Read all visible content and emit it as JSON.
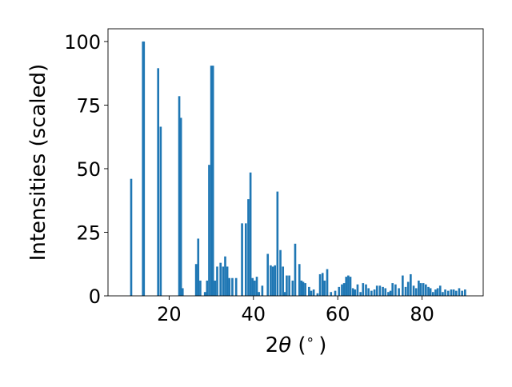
{
  "chart_data": {
    "type": "bar",
    "title": "",
    "xlabel_prefix": "2",
    "xlabel_theta": "θ",
    "xlabel_suffix": " (",
    "xlabel_degree": "∘",
    "xlabel_close": ")",
    "ylabel": "Intensities (scaled)",
    "xlim": [
      5.5,
      94.5
    ],
    "ylim": [
      0,
      105
    ],
    "xticks": [
      20,
      40,
      60,
      80
    ],
    "yticks": [
      0,
      25,
      50,
      75,
      100
    ],
    "grid": false,
    "bar_color": "#1f77b4",
    "bar_width": 0.5,
    "x": [
      11.0,
      13.8,
      14.0,
      17.4,
      18.0,
      22.4,
      22.8,
      23.2,
      26.4,
      26.9,
      27.4,
      28.5,
      29.0,
      29.5,
      30.0,
      30.4,
      30.9,
      31.4,
      32.2,
      32.8,
      33.3,
      33.8,
      34.3,
      35.0,
      35.9,
      37.3,
      38.2,
      38.8,
      39.3,
      39.8,
      40.3,
      40.8,
      41.3,
      42.1,
      43.4,
      44.1,
      44.6,
      45.1,
      45.7,
      46.4,
      47.0,
      47.4,
      47.9,
      48.5,
      49.3,
      49.9,
      50.9,
      51.4,
      51.8,
      52.3,
      53.2,
      53.7,
      54.3,
      55.2,
      55.8,
      56.4,
      56.9,
      57.5,
      58.4,
      59.4,
      60.3,
      61.0,
      61.5,
      62.0,
      62.5,
      63.0,
      63.6,
      64.1,
      64.7,
      65.4,
      66.0,
      66.7,
      67.3,
      68.0,
      68.7,
      69.3,
      70.0,
      70.7,
      71.3,
      72.0,
      72.5,
      73.0,
      73.7,
      74.5,
      75.4,
      76.1,
      76.7,
      77.3,
      78.0,
      78.6,
      79.2,
      79.7,
      80.3,
      80.9,
      81.5,
      82.0,
      82.6,
      83.2,
      83.7,
      84.3,
      84.9,
      85.5,
      86.2,
      86.9,
      87.5,
      88.1,
      88.8,
      89.5,
      90.2
    ],
    "values": [
      46.0,
      100.0,
      100.0,
      89.5,
      66.5,
      78.5,
      70.0,
      3.0,
      12.5,
      22.5,
      6.0,
      1.5,
      6.0,
      51.5,
      90.5,
      90.5,
      6.0,
      11.5,
      13.0,
      11.5,
      15.5,
      11.5,
      7.0,
      7.0,
      7.0,
      28.5,
      28.5,
      38.0,
      48.5,
      7.0,
      6.0,
      7.5,
      1.5,
      4.0,
      16.5,
      12.0,
      11.5,
      12.0,
      41.0,
      18.0,
      11.5,
      1.5,
      8.0,
      8.0,
      6.0,
      20.5,
      12.5,
      6.0,
      5.5,
      5.0,
      3.5,
      2.0,
      2.5,
      1.0,
      8.5,
      9.0,
      6.0,
      10.5,
      1.5,
      2.0,
      3.5,
      4.5,
      5.0,
      7.5,
      8.0,
      7.5,
      3.0,
      2.5,
      4.5,
      1.5,
      5.0,
      4.5,
      3.0,
      2.0,
      2.5,
      4.0,
      4.0,
      3.5,
      3.0,
      1.5,
      2.0,
      5.0,
      4.5,
      3.0,
      8.0,
      3.5,
      5.5,
      8.5,
      4.0,
      3.0,
      6.0,
      5.0,
      5.0,
      4.5,
      3.5,
      3.0,
      1.5,
      2.5,
      3.0,
      4.0,
      1.5,
      2.5,
      2.0,
      2.5,
      2.5,
      2.0,
      3.0,
      2.0,
      2.5
    ]
  }
}
